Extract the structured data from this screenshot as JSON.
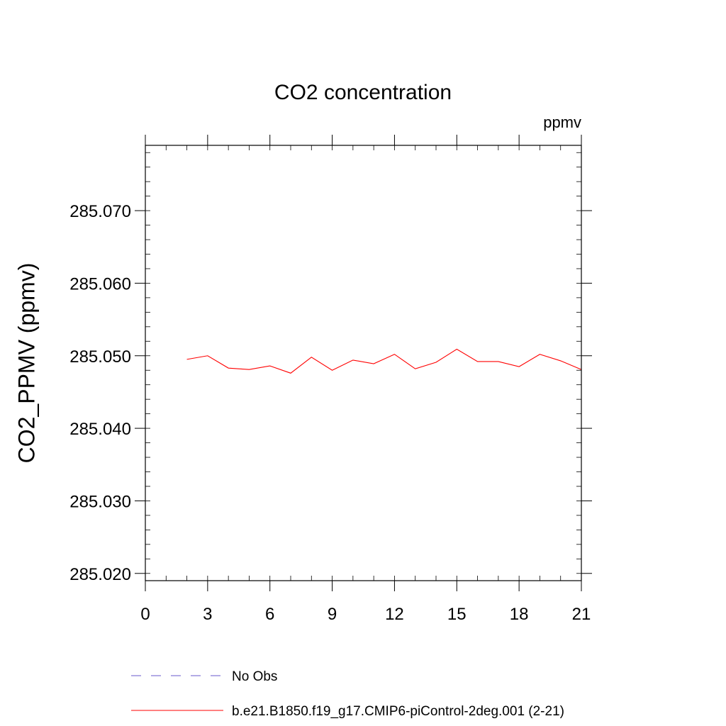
{
  "chart_data": {
    "type": "line",
    "title": "CO2 concentration",
    "units": "ppmv",
    "ylabel": "CO2_PPMV  (ppmv)",
    "xlabel": "",
    "xlim": [
      0,
      21
    ],
    "ylim": [
      285.019,
      285.079
    ],
    "x_ticks": [
      0,
      3,
      6,
      9,
      12,
      15,
      18,
      21
    ],
    "x_tick_labels": [
      "0",
      "3",
      "6",
      "9",
      "12",
      "15",
      "18",
      "21"
    ],
    "y_ticks": [
      285.02,
      285.03,
      285.04,
      285.05,
      285.06,
      285.07
    ],
    "y_tick_labels": [
      "285.020",
      "285.030",
      "285.040",
      "285.050",
      "285.060",
      "285.070"
    ],
    "x_minor_step": 1,
    "y_minor_step": 0.002,
    "grid": false,
    "legend_position": "bottom-left",
    "series": [
      {
        "name": "No Obs",
        "color": "#6a5acd",
        "dash": "dashed",
        "x": [],
        "values": []
      },
      {
        "name": "b.e21.B1850.f19_g17.CMIP6-piControl-2deg.001 (2-21)",
        "color": "#ff0000",
        "dash": "solid",
        "x": [
          2,
          3,
          4,
          5,
          6,
          7,
          8,
          9,
          10,
          11,
          12,
          13,
          14,
          15,
          16,
          17,
          18,
          19,
          20,
          21
        ],
        "values": [
          285.0495,
          285.05,
          285.0483,
          285.0481,
          285.0486,
          285.0476,
          285.0498,
          285.048,
          285.0494,
          285.0489,
          285.0502,
          285.0482,
          285.0491,
          285.0509,
          285.0492,
          285.0492,
          285.0485,
          285.0502,
          285.0493,
          285.0481
        ]
      }
    ]
  }
}
